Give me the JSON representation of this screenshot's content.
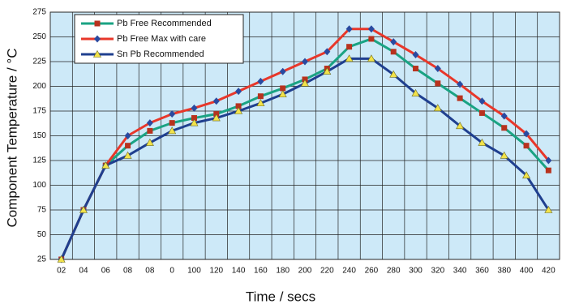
{
  "chart_data": {
    "type": "line",
    "x_label": "Time / secs",
    "y_label": "Component Temperature / °C",
    "categories": [
      "02",
      "04",
      "06",
      "08",
      "08",
      "0",
      "100",
      "120",
      "140",
      "160",
      "180",
      "200",
      "220",
      "240",
      "260",
      "280",
      "300",
      "320",
      "340",
      "360",
      "380",
      "400",
      "420"
    ],
    "series": [
      {
        "name": "Pb Free Recommended",
        "color": "#1aa383",
        "marker": "square",
        "marker_color": "#b8321e",
        "values": [
          25,
          75,
          120,
          140,
          155,
          163,
          168,
          172,
          180,
          190,
          198,
          207,
          218,
          240,
          248,
          235,
          218,
          203,
          188,
          173,
          158,
          140,
          115
        ]
      },
      {
        "name": "Pb Free Max with care",
        "color": "#e8372a",
        "marker": "diamond",
        "marker_color": "#2a4aa0",
        "values": [
          25,
          75,
          120,
          150,
          163,
          172,
          178,
          185,
          195,
          205,
          215,
          225,
          235,
          258,
          258,
          245,
          232,
          218,
          202,
          185,
          170,
          152,
          125
        ]
      },
      {
        "name": "Sn Pb Recommended",
        "color": "#1f3f8f",
        "marker": "triangle",
        "marker_color": "#f2e24a",
        "values": [
          25,
          75,
          120,
          130,
          143,
          155,
          163,
          168,
          175,
          183,
          192,
          203,
          215,
          228,
          228,
          212,
          193,
          178,
          160,
          143,
          130,
          110,
          75
        ]
      }
    ],
    "ylim": [
      25,
      275
    ],
    "yticks": [
      25,
      50,
      75,
      100,
      125,
      150,
      175,
      200,
      225,
      250,
      275
    ],
    "grid": true,
    "legend": "top-left",
    "background": "#cde9f8"
  }
}
